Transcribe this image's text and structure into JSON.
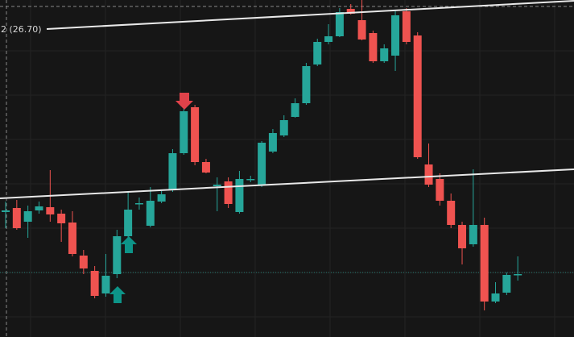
{
  "chart_data": {
    "type": "candlestick",
    "line_label": "2 (26.70)",
    "ylim": [
      22.88,
      27.06
    ],
    "up_color": "#26a69a",
    "down_color": "#ef5350",
    "open": [
      24.43,
      24.48,
      24.31,
      24.45,
      24.49,
      24.41,
      24.3,
      23.89,
      23.7,
      23.42,
      23.66,
      24.13,
      24.53,
      24.26,
      24.56,
      24.71,
      25.16,
      25.73,
      25.05,
      24.75,
      24.81,
      24.43,
      24.83,
      24.76,
      25.18,
      25.38,
      25.61,
      25.78,
      26.26,
      26.54,
      26.61,
      26.95,
      26.81,
      26.65,
      26.3,
      26.37,
      26.92,
      26.62,
      25.02,
      24.84,
      24.57,
      24.27,
      24.03,
      24.27,
      23.32,
      23.43,
      23.65
    ],
    "high": [
      24.56,
      24.58,
      24.51,
      24.56,
      24.95,
      24.46,
      24.44,
      23.96,
      23.76,
      23.91,
      24.21,
      24.69,
      24.61,
      24.74,
      24.69,
      25.21,
      25.71,
      25.76,
      25.09,
      24.86,
      24.86,
      24.94,
      24.88,
      25.31,
      25.46,
      25.63,
      25.84,
      26.28,
      26.58,
      26.76,
      26.96,
      27.01,
      27.06,
      26.68,
      26.51,
      26.94,
      26.96,
      26.66,
      25.28,
      24.91,
      24.66,
      24.31,
      24.96,
      24.36,
      23.56,
      23.68,
      23.88
    ],
    "low": [
      24.23,
      24.21,
      24.11,
      24.41,
      24.31,
      24.06,
      23.88,
      23.66,
      23.36,
      23.38,
      23.61,
      24.06,
      24.46,
      24.24,
      24.54,
      24.68,
      25.14,
      25.01,
      24.91,
      24.44,
      24.48,
      24.41,
      24.8,
      24.74,
      25.16,
      25.36,
      25.6,
      25.76,
      26.24,
      26.51,
      26.6,
      26.88,
      26.56,
      26.28,
      26.28,
      26.18,
      26.51,
      25.09,
      24.74,
      24.51,
      24.23,
      23.78,
      24.0,
      23.21,
      23.3,
      23.4,
      23.58
    ],
    "close": [
      24.45,
      24.23,
      24.44,
      24.5,
      24.4,
      24.29,
      23.91,
      23.73,
      23.39,
      23.64,
      24.13,
      24.46,
      24.54,
      24.57,
      24.65,
      25.16,
      25.68,
      25.05,
      24.92,
      24.77,
      24.53,
      24.84,
      24.84,
      25.29,
      25.41,
      25.57,
      25.78,
      26.24,
      26.54,
      26.61,
      26.91,
      26.89,
      26.57,
      26.3,
      26.46,
      26.87,
      26.54,
      25.11,
      24.77,
      24.57,
      24.27,
      23.98,
      24.27,
      23.32,
      23.42,
      23.65,
      23.66
    ]
  }
}
